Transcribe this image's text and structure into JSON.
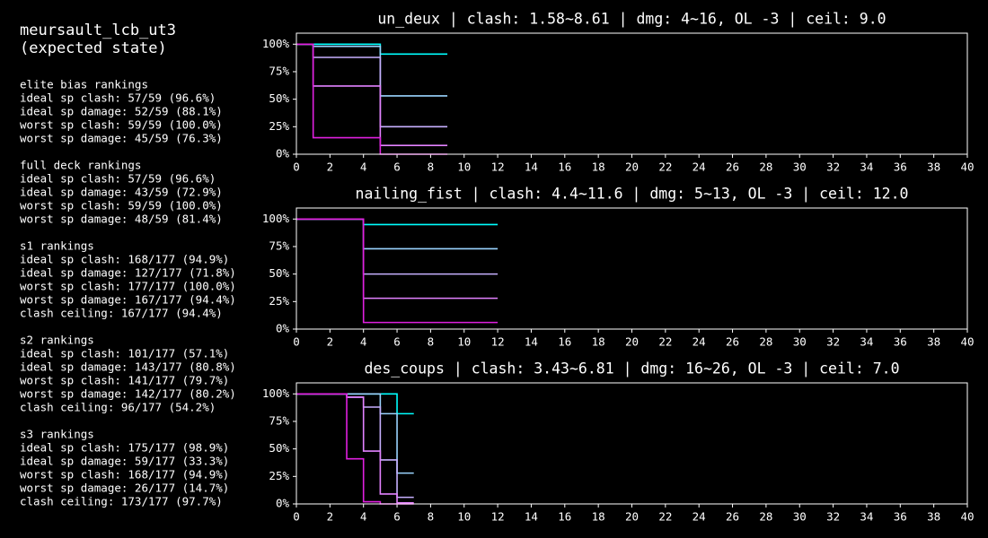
{
  "panel": {
    "title": [
      "meursault_lcb_ut3",
      "(expected state)"
    ],
    "sections": [
      {
        "heading": "elite bias rankings",
        "lines": [
          "ideal sp clash: 57/59 (96.6%)",
          "ideal sp damage: 52/59 (88.1%)",
          "worst sp clash: 59/59 (100.0%)",
          "worst sp damage: 45/59 (76.3%)"
        ]
      },
      {
        "heading": "full deck rankings",
        "lines": [
          "ideal sp clash: 57/59 (96.6%)",
          "ideal sp damage: 43/59 (72.9%)",
          "worst sp clash: 59/59 (100.0%)",
          "worst sp damage: 48/59 (81.4%)"
        ]
      },
      {
        "heading": "s1 rankings",
        "lines": [
          "ideal sp clash: 168/177 (94.9%)",
          "ideal sp damage: 127/177 (71.8%)",
          "worst sp clash: 177/177 (100.0%)",
          "worst sp damage: 167/177 (94.4%)",
          "clash ceiling: 167/177 (94.4%)"
        ]
      },
      {
        "heading": "s2 rankings",
        "lines": [
          "ideal sp clash: 101/177 (57.1%)",
          "ideal sp damage: 143/177 (80.8%)",
          "worst sp clash: 141/177 (79.7%)",
          "worst sp damage: 142/177 (80.2%)",
          "clash ceiling: 96/177 (54.2%)"
        ]
      },
      {
        "heading": "s3 rankings",
        "lines": [
          "ideal sp clash: 175/177 (98.9%)",
          "ideal sp damage: 59/177 (33.3%)",
          "worst sp clash: 168/177 (94.9%)",
          "worst sp damage: 26/177 (14.7%)",
          "clash ceiling: 173/177 (97.7%)"
        ]
      }
    ]
  },
  "chart_data": [
    {
      "type": "step",
      "title": "un_deux | clash: 1.58~8.61 | dmg: 4~16, OL -3 | ceil: 9.0",
      "x": [
        0,
        1,
        5,
        9
      ],
      "series": [
        {
          "color": "#00ffff",
          "values": [
            100,
            100,
            91,
            91
          ]
        },
        {
          "color": "#9ad4ff",
          "values": [
            100,
            98,
            53,
            53
          ]
        },
        {
          "color": "#c7b0ff",
          "values": [
            100,
            88,
            25,
            25
          ]
        },
        {
          "color": "#e382ff",
          "values": [
            100,
            62,
            8,
            8
          ]
        },
        {
          "color": "#e020e0",
          "values": [
            100,
            15,
            0,
            0
          ]
        }
      ],
      "xlim": [
        0,
        40
      ],
      "xticks": [
        0,
        2,
        4,
        6,
        8,
        10,
        12,
        14,
        16,
        18,
        20,
        22,
        24,
        26,
        28,
        30,
        32,
        34,
        36,
        38,
        40
      ],
      "ylim": [
        0,
        110
      ],
      "yticks": [
        {
          "value": 0,
          "label": "0%"
        },
        {
          "value": 25,
          "label": "25%"
        },
        {
          "value": 50,
          "label": "50%"
        },
        {
          "value": 75,
          "label": "75%"
        },
        {
          "value": 100,
          "label": "100%"
        }
      ]
    },
    {
      "type": "step",
      "title": "nailing_fist | clash: 4.4~11.6 | dmg: 5~13, OL -3 | ceil: 12.0",
      "x": [
        0,
        4,
        12
      ],
      "series": [
        {
          "color": "#00ffff",
          "values": [
            100,
            95,
            95
          ]
        },
        {
          "color": "#9ad4ff",
          "values": [
            100,
            73,
            73
          ]
        },
        {
          "color": "#c7b0ff",
          "values": [
            100,
            50,
            50
          ]
        },
        {
          "color": "#e382ff",
          "values": [
            100,
            28,
            28
          ]
        },
        {
          "color": "#e020e0",
          "values": [
            100,
            6,
            6
          ]
        }
      ],
      "xlim": [
        0,
        40
      ],
      "xticks": [
        0,
        2,
        4,
        6,
        8,
        10,
        12,
        14,
        16,
        18,
        20,
        22,
        24,
        26,
        28,
        30,
        32,
        34,
        36,
        38,
        40
      ],
      "ylim": [
        0,
        110
      ],
      "yticks": [
        {
          "value": 0,
          "label": "0%"
        },
        {
          "value": 25,
          "label": "25%"
        },
        {
          "value": 50,
          "label": "50%"
        },
        {
          "value": 75,
          "label": "75%"
        },
        {
          "value": 100,
          "label": "100%"
        }
      ]
    },
    {
      "type": "step",
      "title": "des_coups | clash: 3.43~6.81 | dmg: 16~26, OL -3 | ceil: 7.0",
      "x": [
        0,
        3,
        4,
        5,
        6,
        7
      ],
      "series": [
        {
          "color": "#00ffff",
          "values": [
            100,
            100,
            100,
            100,
            82,
            82
          ]
        },
        {
          "color": "#9ad4ff",
          "values": [
            100,
            100,
            100,
            82,
            28,
            28
          ]
        },
        {
          "color": "#c7b0ff",
          "values": [
            100,
            97,
            88,
            40,
            6,
            6
          ]
        },
        {
          "color": "#e382ff",
          "values": [
            100,
            97,
            48,
            9,
            1,
            1
          ]
        },
        {
          "color": "#e020e0",
          "values": [
            100,
            41,
            2,
            0,
            0,
            0
          ]
        }
      ],
      "xlim": [
        0,
        40
      ],
      "xticks": [
        0,
        2,
        4,
        6,
        8,
        10,
        12,
        14,
        16,
        18,
        20,
        22,
        24,
        26,
        28,
        30,
        32,
        34,
        36,
        38,
        40
      ],
      "ylim": [
        0,
        110
      ],
      "yticks": [
        {
          "value": 0,
          "label": "0%"
        },
        {
          "value": 25,
          "label": "25%"
        },
        {
          "value": 50,
          "label": "50%"
        },
        {
          "value": 75,
          "label": "75%"
        },
        {
          "value": 100,
          "label": "100%"
        }
      ]
    }
  ]
}
